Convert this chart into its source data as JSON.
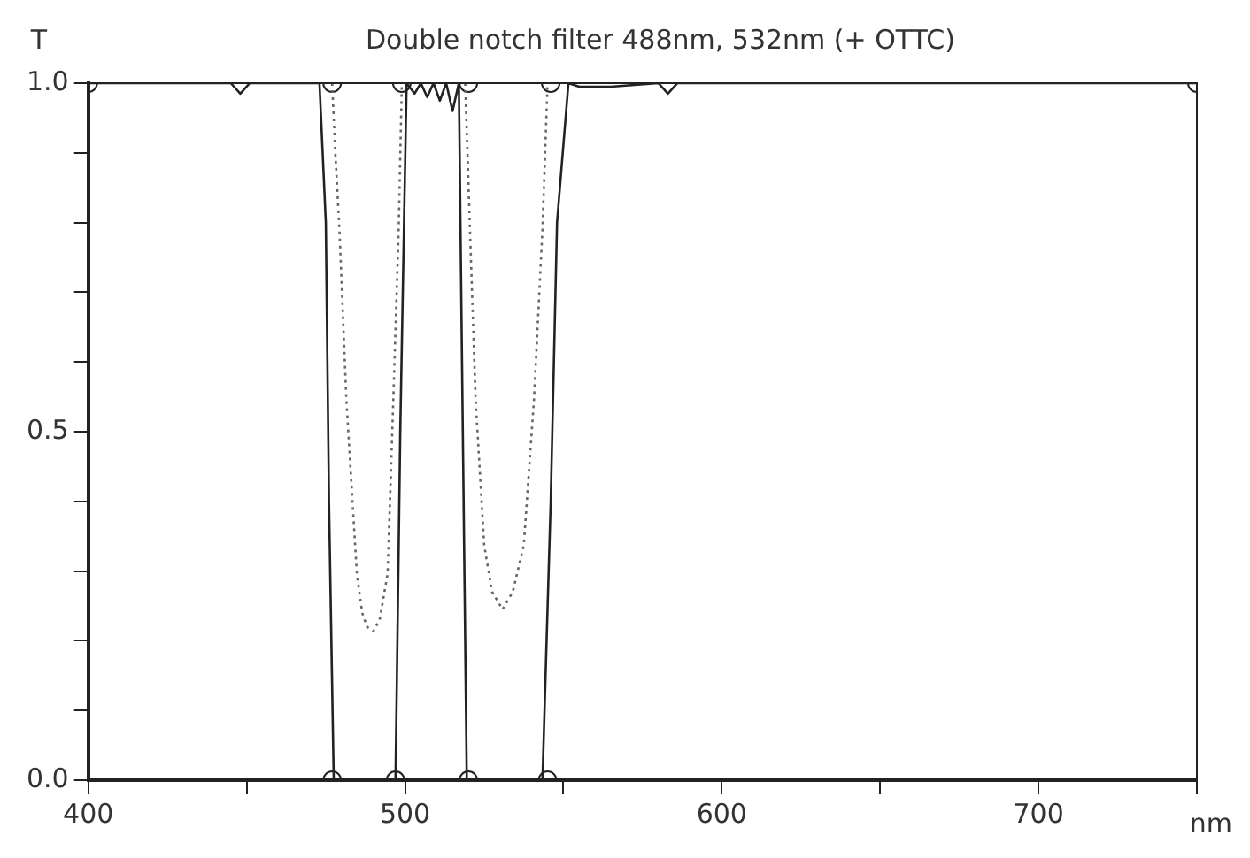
{
  "chart_data": {
    "type": "line",
    "title": "Double notch filter 488nm, 532nm (+ OTTC)",
    "xlabel": "nm",
    "ylabel": "T",
    "xlim": [
      400,
      750
    ],
    "ylim": [
      0,
      1
    ],
    "xticks": [
      400,
      {
        "value": 450,
        "label": null
      },
      500,
      {
        "value": 550,
        "label": null
      },
      600,
      {
        "value": 650,
        "label": null
      },
      700,
      {
        "value": 750,
        "label": null
      }
    ],
    "yticks": [
      {
        "value": 0,
        "label": "0.0"
      },
      {
        "value": 0.1,
        "label": null
      },
      {
        "value": 0.2,
        "label": null
      },
      {
        "value": 0.3,
        "label": null
      },
      {
        "value": 0.4,
        "label": null
      },
      {
        "value": 0.5,
        "label": "0.5"
      },
      {
        "value": 0.6,
        "label": null
      },
      {
        "value": 0.7,
        "label": null
      },
      {
        "value": 0.8,
        "label": null
      },
      {
        "value": 0.9,
        "label": null
      },
      {
        "value": 1,
        "label": "1.0"
      }
    ],
    "grid": false,
    "legend": false,
    "series": [
      {
        "color": "#222222",
        "line_style": "solid",
        "marker": "none",
        "x": [
          400,
          445,
          448,
          451,
          473,
          475,
          476,
          477.5,
          497,
          498.5,
          500.5,
          503,
          505,
          507,
          509,
          511,
          513,
          515,
          517,
          518,
          519.5,
          543.4,
          546,
          548,
          551.6,
          555,
          565,
          580,
          583,
          586,
          750
        ],
        "values": [
          1,
          1,
          0.985,
          1,
          1,
          0.8,
          0.4,
          0,
          0,
          0.5,
          1,
          0.985,
          1,
          0.98,
          1,
          0.975,
          1,
          0.96,
          1,
          0.6,
          0,
          0,
          0.4,
          0.8,
          1,
          0.995,
          0.995,
          1,
          0.985,
          1,
          1
        ]
      },
      {
        "color": "#666666",
        "line_style": "dotted",
        "marker": "none",
        "x": [
          477,
          478,
          479.3,
          481.5,
          484.8,
          486.5,
          488,
          490,
          492,
          493.5,
          494.5,
          496.3,
          498,
          499,
          509,
          519,
          520.5,
          522.3,
          525,
          527.5,
          530.8,
          534,
          537.5,
          540.7,
          543.4,
          545
        ],
        "values": [
          1,
          0.9,
          0.79,
          0.545,
          0.296,
          0.24,
          0.22,
          0.214,
          0.23,
          0.27,
          0.296,
          0.545,
          0.79,
          1,
          null,
          1,
          0.79,
          0.545,
          0.337,
          0.27,
          0.245,
          0.27,
          0.337,
          0.545,
          0.79,
          1
        ]
      },
      {
        "type": "scatter",
        "color": "#222222",
        "marker": "circle",
        "x": [
          400,
          477,
          499,
          520,
          546,
          750,
          477,
          497,
          520,
          545
        ],
        "values": [
          1,
          1,
          1,
          1,
          1,
          1,
          0,
          0,
          0,
          0
        ]
      }
    ]
  }
}
